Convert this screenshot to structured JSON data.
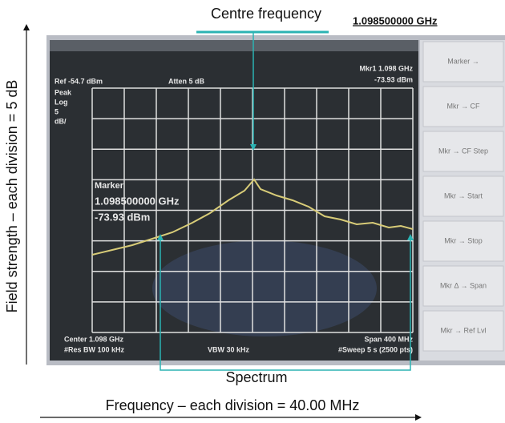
{
  "annotations": {
    "centre_label": "Centre frequency",
    "centre_value": "1.098500000 GHz",
    "spectrum_label": "Spectrum",
    "x_axis_label": "Frequency – each division = 40.00 MHz",
    "y_axis_label": "Field strength – each division = 5 dB"
  },
  "screen": {
    "ref": "Ref -54.7 dBm",
    "atten": "Atten 5 dB",
    "scale": [
      "Peak",
      "Log",
      "5",
      "dB/"
    ],
    "marker_top": [
      "Mkr1 1.098 GHz",
      "-73.93 dBm"
    ],
    "marker_box": [
      "Marker",
      "1.098500000 GHz",
      "-73.93 dBm"
    ],
    "center": "Center 1.098 GHz",
    "span": "Span 400 MHz",
    "res_bw": "#Res BW 100 kHz",
    "vbw": "VBW 30 kHz",
    "sweep": "#Sweep 5 s (2500 pts)"
  },
  "softkeys": [
    "Marker →",
    "Mkr → CF",
    "Mkr → CF Step",
    "Mkr → Start",
    "Mkr → Stop",
    "Mkr Δ → Span",
    "Mkr → Ref Lvl"
  ]
}
